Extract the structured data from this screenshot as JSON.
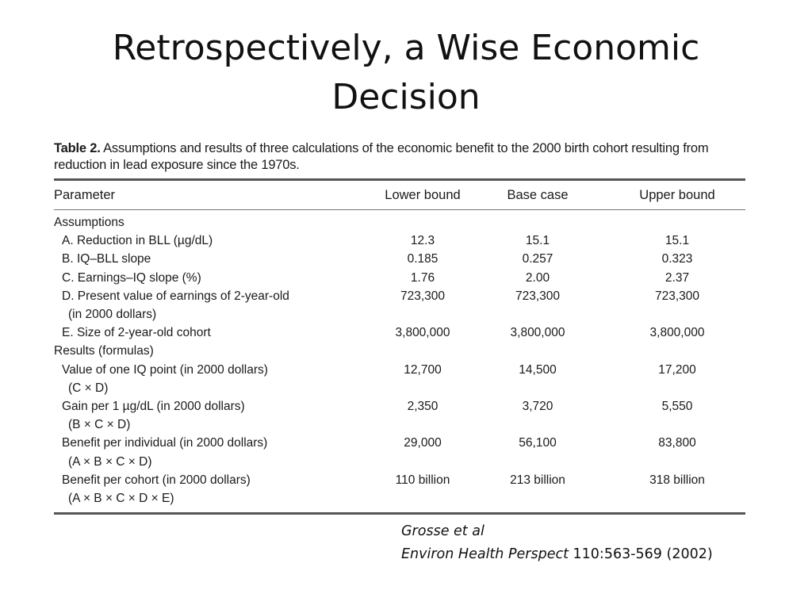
{
  "slide": {
    "title_line1": "Retrospectively, a Wise Economic",
    "title_line2": "Decision"
  },
  "table": {
    "caption_label": "Table 2.",
    "caption_text": " Assumptions and results of three calculations of the economic benefit to the 2000 birth cohort resulting from reduction in lead exposure since the 1970s.",
    "headers": {
      "parameter": "Parameter",
      "lower": "Lower bound",
      "base": "Base case",
      "upper": "Upper bound"
    },
    "sections": {
      "assumptions": "Assumptions",
      "results": "Results (formulas)"
    },
    "rows": [
      {
        "label": "A. Reduction in BLL (µg/dL)",
        "sub": "",
        "lower": "12.3",
        "base": "15.1",
        "upper": "15.1"
      },
      {
        "label": "B. IQ–BLL slope",
        "sub": "",
        "lower": "0.185",
        "base": "0.257",
        "upper": "0.323"
      },
      {
        "label": "C. Earnings–IQ slope (%)",
        "sub": "",
        "lower": "1.76",
        "base": "2.00",
        "upper": "2.37"
      },
      {
        "label": "D. Present value of earnings of 2-year-old",
        "sub": "(in 2000 dollars)",
        "lower": "723,300",
        "base": "723,300",
        "upper": "723,300"
      },
      {
        "label": "E. Size of 2-year-old cohort",
        "sub": "",
        "lower": "3,800,000",
        "base": "3,800,000",
        "upper": "3,800,000"
      },
      {
        "label": "Value of one IQ point (in 2000 dollars)",
        "sub": "(C × D)",
        "lower": "12,700",
        "base": "14,500",
        "upper": "17,200"
      },
      {
        "label": "Gain per 1 µg/dL (in 2000 dollars)",
        "sub": "(B × C × D)",
        "lower": "2,350",
        "base": "3,720",
        "upper": "5,550"
      },
      {
        "label": "Benefit per individual (in 2000 dollars)",
        "sub": "(A × B × C × D)",
        "lower": "29,000",
        "base": "56,100",
        "upper": "83,800"
      },
      {
        "label": "Benefit per cohort (in 2000 dollars)",
        "sub": "(A × B × C × D × E)",
        "lower": "110 billion",
        "base": "213 billion",
        "upper": "318 billion"
      }
    ]
  },
  "citation": {
    "authors": "Grosse et al",
    "journal": "Environ Health Perspect",
    "reference": " 110:563-569 (2002)"
  }
}
